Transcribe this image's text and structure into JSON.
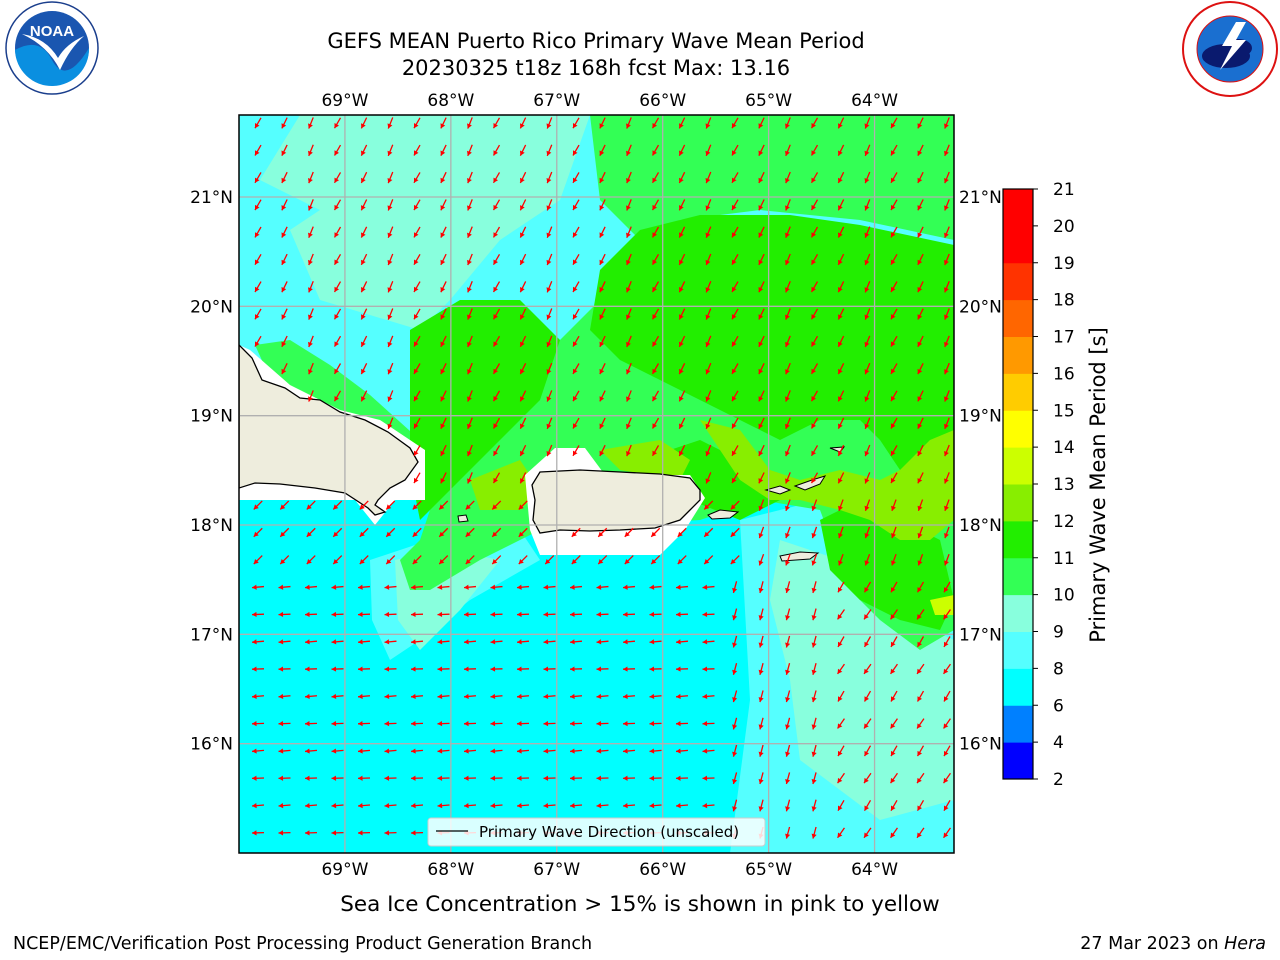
{
  "header": {
    "title_line1": "GEFS MEAN Puerto Rico Primary Wave Mean Period",
    "title_line2": "20230325 t18z 168h fcst   Max: 13.16"
  },
  "logos": {
    "left": {
      "text": "NOAA",
      "ring_text": "NATIONAL OCEANIC AND ATMOSPHERIC ADMINISTRATION · U.S. DEPARTMENT OF COMMERCE"
    },
    "right": {
      "ring_text": "NATIONAL WEATHER SERVICE"
    }
  },
  "chart_data": {
    "type": "heatmap",
    "title": "GEFS MEAN Puerto Rico Primary Wave Mean Period",
    "subtitle": "20230325 t18z 168h fcst   Max: 13.16",
    "max_value": 13.16,
    "x_axis": {
      "ticks": [
        -69,
        -68,
        -67,
        -66,
        -65,
        -64
      ],
      "tick_labels": [
        "69°W",
        "68°W",
        "67°W",
        "66°W",
        "65°W",
        "64°W"
      ],
      "range": [
        -70.0,
        -63.25
      ]
    },
    "y_axis": {
      "ticks": [
        16,
        17,
        18,
        19,
        20,
        21
      ],
      "tick_labels": [
        "16°N",
        "17°N",
        "18°N",
        "19°N",
        "20°N",
        "21°N"
      ],
      "range": [
        15.0,
        21.75
      ]
    },
    "grid": true,
    "colorbar": {
      "label": "Primary Wave Mean Period [s]",
      "levels": [
        2,
        4,
        6,
        8,
        9,
        10,
        11,
        12,
        13,
        14,
        15,
        16,
        17,
        18,
        19,
        20,
        21
      ],
      "colors": [
        "#0000ff",
        "#0080ff",
        "#00ffff",
        "#55ffff",
        "#88ffdd",
        "#33ff55",
        "#22ee00",
        "#88ee00",
        "#ccff00",
        "#ffff00",
        "#ffcc00",
        "#ff9900",
        "#ff6600",
        "#ff3300",
        "#ff0000",
        "#ff0000"
      ]
    },
    "regions": [
      {
        "name": "south sea (6-8 s)",
        "value": 7
      },
      {
        "name": "northwest sea (8-9 s)",
        "value": 8.5
      },
      {
        "name": "north and east sea (10-12 s)",
        "value": 11
      },
      {
        "name": "near Virgin Islands (12-13 s)",
        "value": 12.5
      }
    ],
    "vector_field": {
      "name": "Primary Wave Direction (unscaled)",
      "color": "#ff0000",
      "north_direction": "towards southwest",
      "south_direction": "towards west"
    },
    "legend": {
      "label": "Primary Wave Direction (unscaled)",
      "placement": "lower-center"
    }
  },
  "caption": "Sea Ice Concentration > 15% is shown in pink to yellow",
  "footer": {
    "left": "NCEP/EMC/Verification Post Processing Product Generation Branch",
    "right_date": "27 Mar 2023 on ",
    "right_host": "Hera"
  }
}
